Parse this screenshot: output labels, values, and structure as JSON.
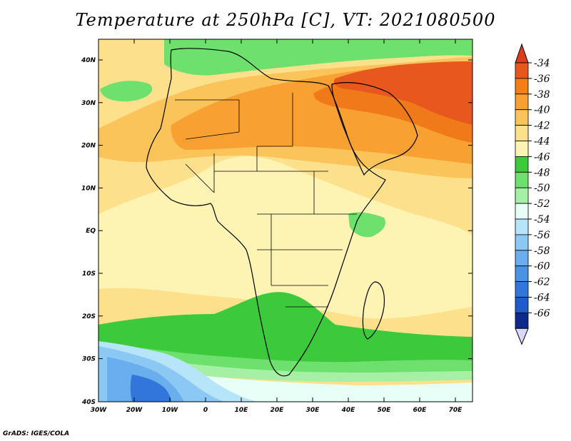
{
  "title": "Temperature at 250hPa [C], VT: 2021080500",
  "footer": "GrADS: IGES/COLA",
  "map": {
    "lat_labels": [
      "40N",
      "30N",
      "20N",
      "10N",
      "EQ",
      "10S",
      "20S",
      "30S",
      "40S"
    ],
    "lon_labels": [
      "30W",
      "20W",
      "10W",
      "0",
      "10E",
      "20E",
      "30E",
      "40E",
      "50E",
      "60E",
      "70E"
    ]
  },
  "colorbar": {
    "labels": [
      "-34",
      "-36",
      "-38",
      "-40",
      "-42",
      "-44",
      "-46",
      "-48",
      "-50",
      "-52",
      "-54",
      "-56",
      "-58",
      "-60",
      "-62",
      "-64",
      "-66"
    ],
    "colors": [
      "#e8571e",
      "#f27f18",
      "#f9a032",
      "#fbc45a",
      "#fde08c",
      "#fdf3b3",
      "#3cc93c",
      "#6ee06e",
      "#a6f0a6",
      "#e8fff8",
      "#b6e4f8",
      "#8cc8f4",
      "#6aaeee",
      "#4a92e6",
      "#3276dc",
      "#1e5ccc",
      "#0e2a8a"
    ],
    "arrow_top_color": "#e03c1c",
    "arrow_bottom_color": "#d8d8f8"
  },
  "field_colors": {
    "hot": "#f07a1a",
    "hotter": "#e8571e",
    "warm": "#f9a032",
    "mild": "#fbc45a",
    "pale": "#fde08c",
    "cream": "#fdf3b3",
    "green": "#3cc93c",
    "lightgreen": "#6ee06e",
    "palegreen": "#a6f0a6",
    "mint": "#e8fff8",
    "lightblue": "#b6e4f8",
    "blue": "#8cc8f4",
    "midblue": "#6aaeee",
    "deepblue": "#3276dc"
  }
}
